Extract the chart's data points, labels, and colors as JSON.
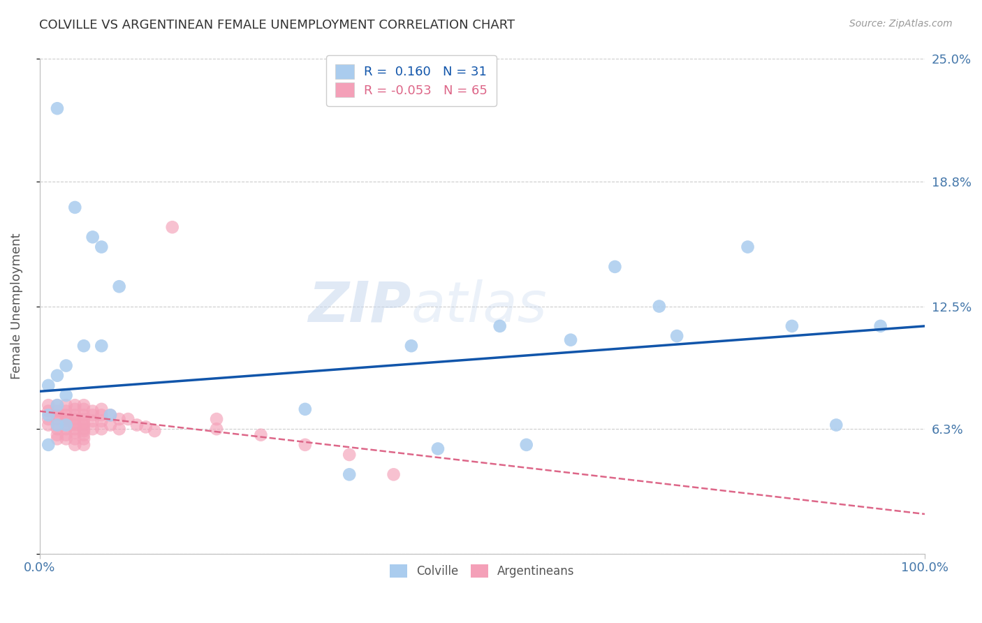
{
  "title": "COLVILLE VS ARGENTINEAN FEMALE UNEMPLOYMENT CORRELATION CHART",
  "source": "Source: ZipAtlas.com",
  "ylabel": "Female Unemployment",
  "xlim": [
    0.0,
    1.0
  ],
  "ylim": [
    0.0,
    0.25
  ],
  "yticks": [
    0.0,
    0.063,
    0.125,
    0.188,
    0.25
  ],
  "ytick_labels": [
    "",
    "6.3%",
    "12.5%",
    "18.8%",
    "25.0%"
  ],
  "xtick_labels": [
    "0.0%",
    "100.0%"
  ],
  "background_color": "#ffffff",
  "watermark_zip": "ZIP",
  "watermark_atlas": "atlas",
  "colville_color": "#aaccee",
  "argentinean_color": "#f4a0b8",
  "colville_line_color": "#1155aa",
  "argentinean_line_color": "#dd6688",
  "R_colville": 0.16,
  "N_colville": 31,
  "R_argentinean": -0.053,
  "N_argentinean": 65,
  "colville_x": [
    0.02,
    0.04,
    0.06,
    0.07,
    0.09,
    0.05,
    0.07,
    0.03,
    0.02,
    0.01,
    0.03,
    0.02,
    0.01,
    0.03,
    0.02,
    0.01,
    0.08,
    0.3,
    0.42,
    0.52,
    0.6,
    0.65,
    0.7,
    0.72,
    0.8,
    0.85,
    0.9,
    0.95,
    0.55,
    0.45,
    0.35
  ],
  "colville_y": [
    0.225,
    0.175,
    0.16,
    0.155,
    0.135,
    0.105,
    0.105,
    0.095,
    0.09,
    0.085,
    0.08,
    0.075,
    0.07,
    0.065,
    0.065,
    0.055,
    0.07,
    0.073,
    0.105,
    0.115,
    0.108,
    0.145,
    0.125,
    0.11,
    0.155,
    0.115,
    0.065,
    0.115,
    0.055,
    0.053,
    0.04
  ],
  "argentinean_x": [
    0.01,
    0.01,
    0.01,
    0.01,
    0.02,
    0.02,
    0.02,
    0.02,
    0.02,
    0.02,
    0.02,
    0.02,
    0.03,
    0.03,
    0.03,
    0.03,
    0.03,
    0.03,
    0.03,
    0.03,
    0.03,
    0.04,
    0.04,
    0.04,
    0.04,
    0.04,
    0.04,
    0.04,
    0.04,
    0.04,
    0.04,
    0.05,
    0.05,
    0.05,
    0.05,
    0.05,
    0.05,
    0.05,
    0.05,
    0.05,
    0.05,
    0.05,
    0.06,
    0.06,
    0.06,
    0.06,
    0.07,
    0.07,
    0.07,
    0.07,
    0.08,
    0.08,
    0.09,
    0.09,
    0.1,
    0.11,
    0.12,
    0.13,
    0.15,
    0.2,
    0.25,
    0.3,
    0.35,
    0.4,
    0.2
  ],
  "argentinean_y": [
    0.075,
    0.072,
    0.068,
    0.065,
    0.075,
    0.072,
    0.07,
    0.068,
    0.065,
    0.063,
    0.06,
    0.058,
    0.075,
    0.072,
    0.07,
    0.068,
    0.067,
    0.065,
    0.063,
    0.06,
    0.058,
    0.075,
    0.073,
    0.07,
    0.068,
    0.066,
    0.065,
    0.063,
    0.061,
    0.058,
    0.055,
    0.075,
    0.073,
    0.07,
    0.068,
    0.066,
    0.065,
    0.063,
    0.062,
    0.06,
    0.058,
    0.055,
    0.072,
    0.07,
    0.067,
    0.063,
    0.073,
    0.07,
    0.067,
    0.063,
    0.07,
    0.065,
    0.068,
    0.063,
    0.068,
    0.065,
    0.064,
    0.062,
    0.165,
    0.063,
    0.06,
    0.055,
    0.05,
    0.04,
    0.068
  ],
  "colville_line_x": [
    0.0,
    1.0
  ],
  "colville_line_y": [
    0.082,
    0.115
  ],
  "argentinean_line_x": [
    0.0,
    1.0
  ],
  "argentinean_line_y": [
    0.072,
    0.02
  ],
  "grid_color": "#cccccc",
  "title_color": "#333333",
  "axis_label_color": "#555555",
  "tick_label_color": "#4477aa"
}
